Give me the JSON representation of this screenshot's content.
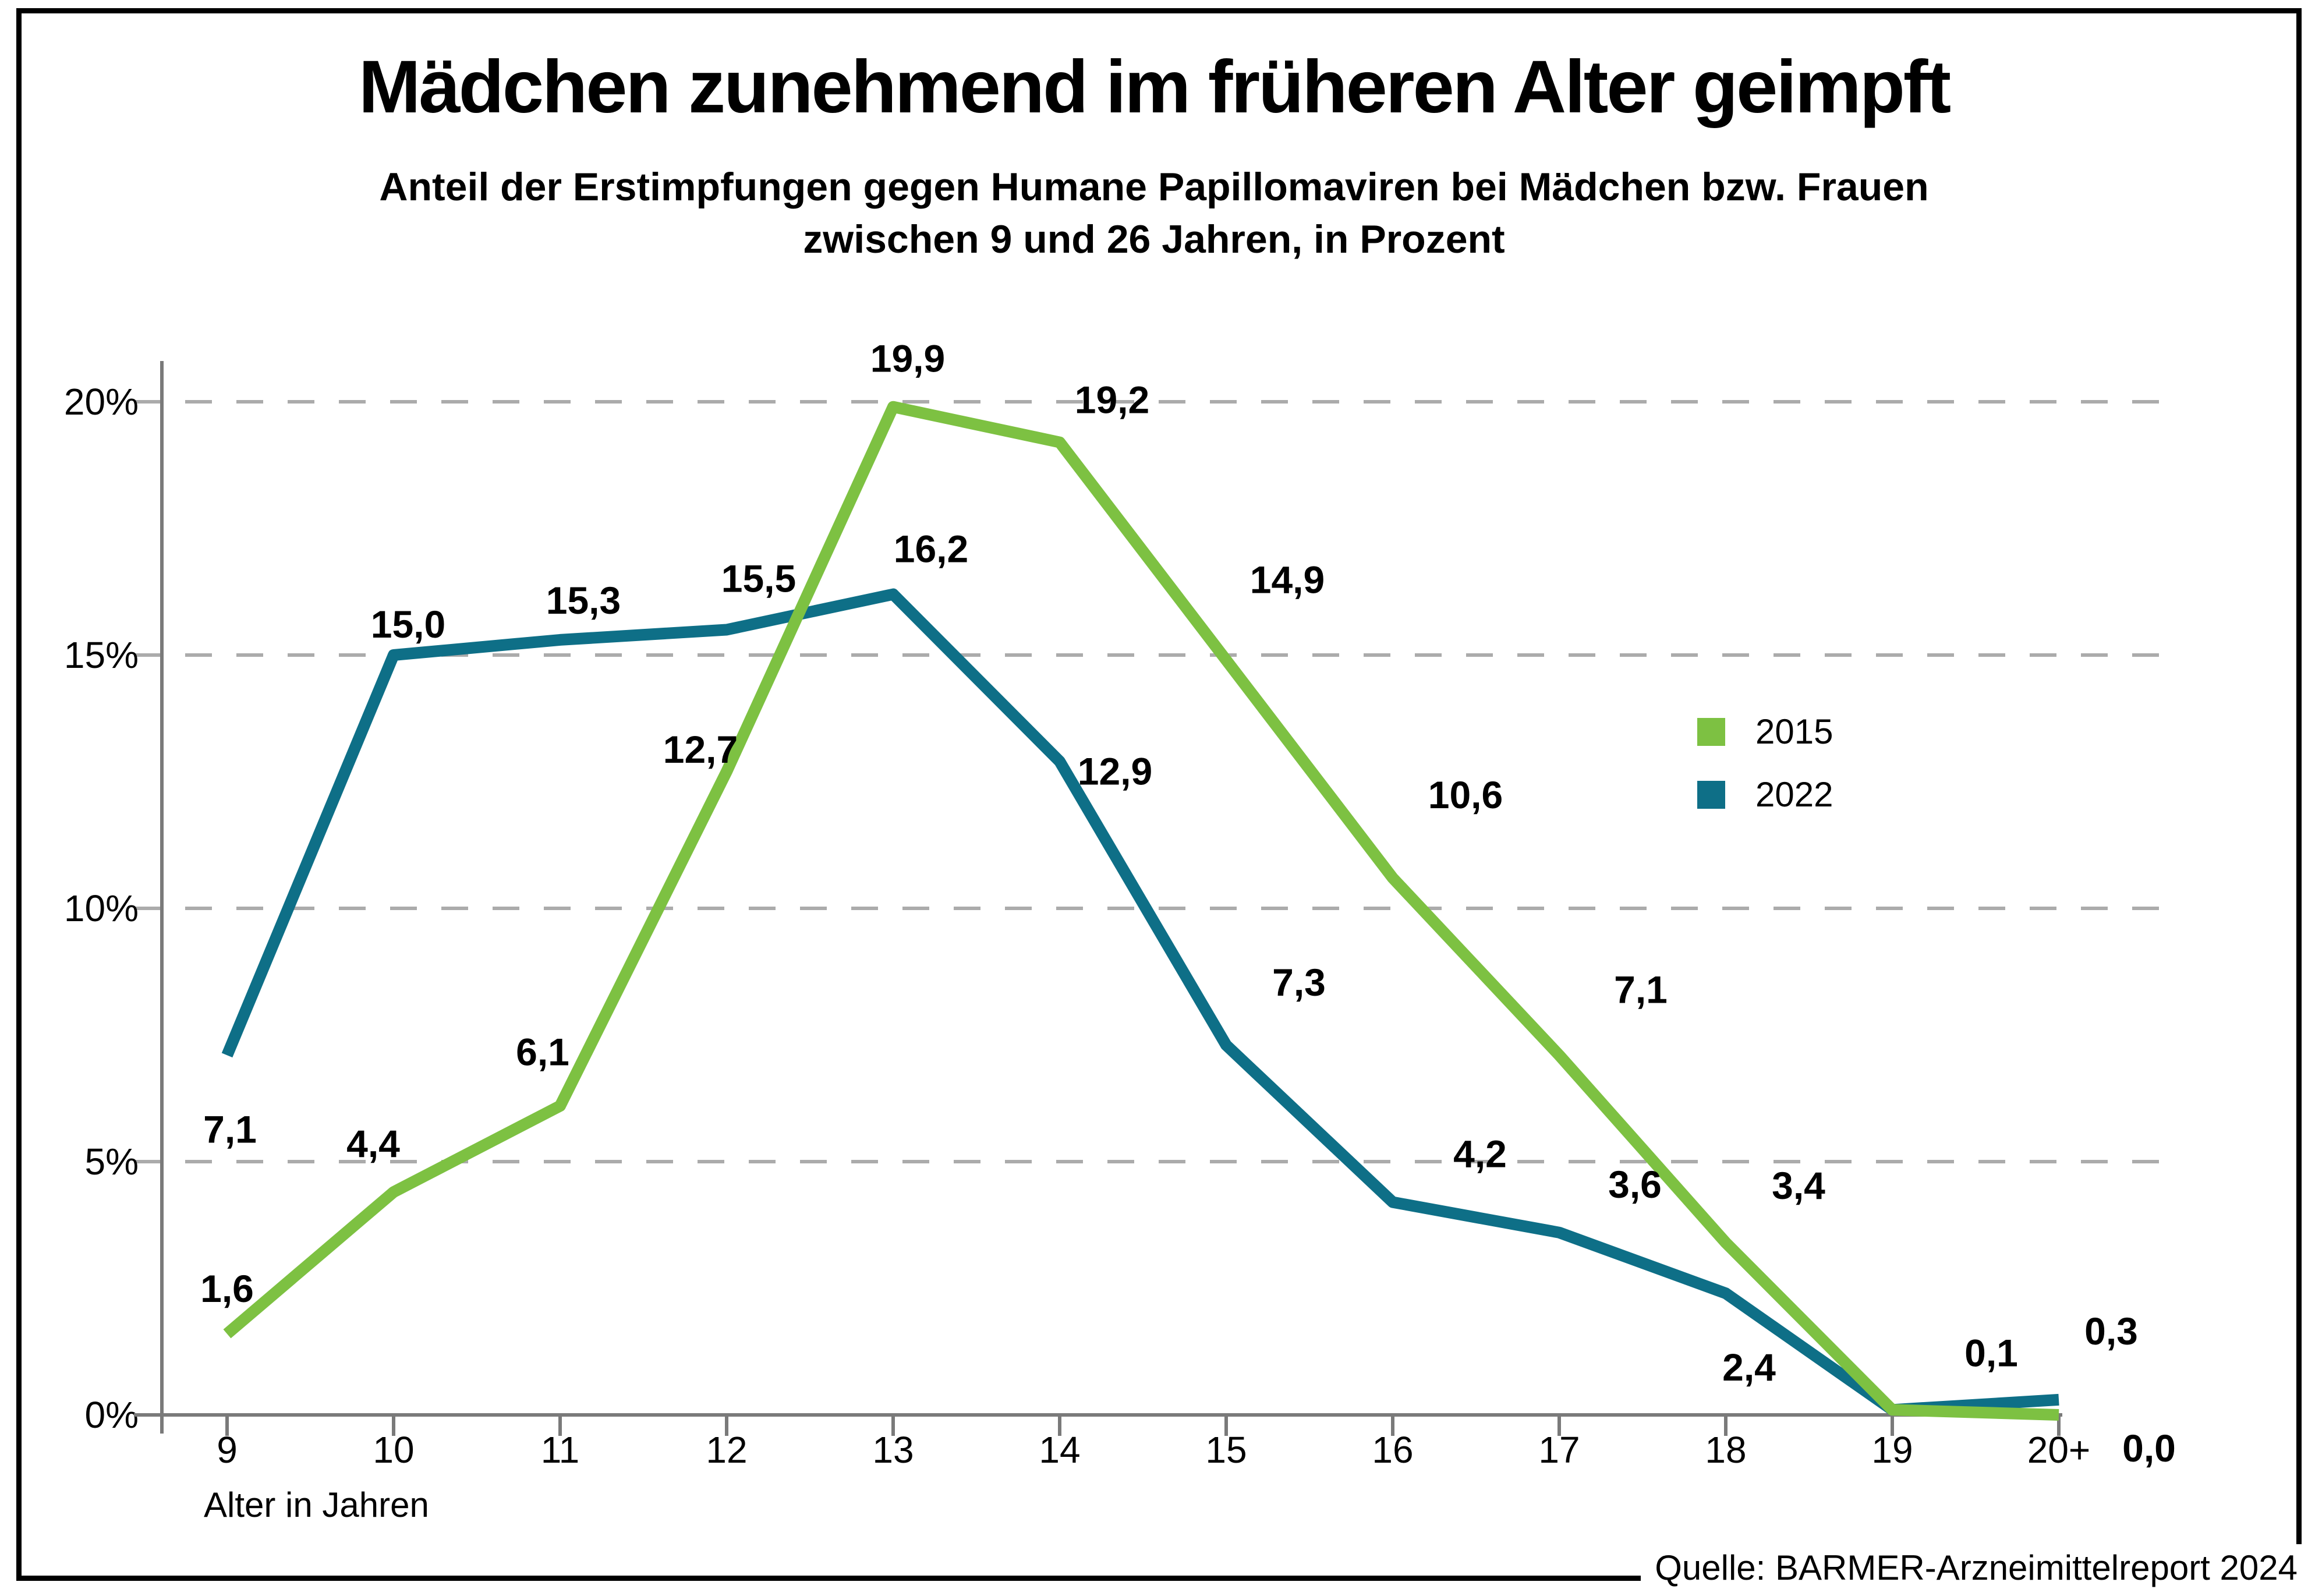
{
  "header": {
    "title": "Mädchen zunehmend im früheren Alter geimpft",
    "subtitle_line1": "Anteil der Erstimpfungen gegen Humane Papillomaviren bei Mädchen bzw. Frauen",
    "subtitle_line2": "zwischen 9 und 26 Jahren, in Prozent"
  },
  "chart_data": {
    "type": "line",
    "xlabel": "Alter in Jahren",
    "ylabel": "",
    "categories": [
      "9",
      "10",
      "11",
      "12",
      "13",
      "14",
      "15",
      "16",
      "17",
      "18",
      "19",
      "20+"
    ],
    "y_ticks": [
      "0%",
      "5%",
      "10%",
      "15%",
      "20%"
    ],
    "ylim": [
      0,
      21
    ],
    "grid": "horizontal-dashed",
    "legend_position": "right-middle",
    "colors": {
      "series_2015": "#7DC142",
      "series_2022": "#0E6F87",
      "gridline": "#ABABAB",
      "axis": "#7A7A7A",
      "label_text": "#000000"
    },
    "series": [
      {
        "name": "2015",
        "color": "#7DC142",
        "values": [
          1.6,
          4.4,
          6.1,
          12.7,
          19.9,
          19.2,
          14.9,
          10.6,
          7.1,
          3.4,
          0.1,
          0.0
        ],
        "labels": [
          "1,6",
          "4,4",
          "6,1",
          "12,7",
          "19,9",
          "19,2",
          "14,9",
          "10,6",
          "7,1",
          "3,4",
          "0,1",
          "0,0"
        ]
      },
      {
        "name": "2022",
        "color": "#0E6F87",
        "values": [
          7.1,
          15.0,
          15.3,
          15.5,
          16.2,
          12.9,
          7.3,
          4.2,
          3.6,
          2.4,
          0.1,
          0.3
        ],
        "labels": [
          "7,1",
          "15,0",
          "15,3",
          "15,5",
          "16,2",
          "12,9",
          "7,3",
          "4,2",
          "3,6",
          "2,4",
          "",
          "0,3"
        ]
      }
    ]
  },
  "footer": {
    "source": "Quelle: BARMER-Arzneimittelreport 2024"
  }
}
